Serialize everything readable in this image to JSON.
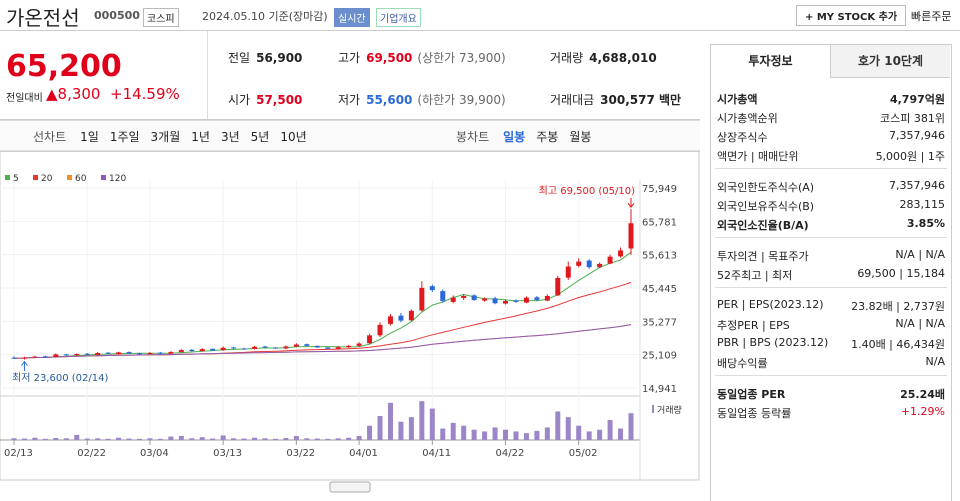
{
  "header": {
    "name": "가온전선",
    "code": "000500",
    "market": "코스피",
    "date": "2024.05.10 기준(장마감)",
    "realtime": "실시간",
    "overview": "기업개요",
    "mystock": "+ MY STOCK 추가",
    "quick_order": "빠른주문"
  },
  "quote": {
    "price": "65,200",
    "change_label": "전일대비",
    "change": "▲8,300",
    "change_pct": "+14.59%",
    "cells": [
      {
        "label": "전일",
        "value": "56,900"
      },
      {
        "label": "고가",
        "value": "69,500",
        "note": "(상한가 73,900)"
      },
      {
        "label": "거래량",
        "value": "4,688,010"
      },
      {
        "label": "시가",
        "value": "57,500"
      },
      {
        "label": "저가",
        "value": "55,600",
        "note": "(하한가 39,900)"
      },
      {
        "label": "거래대금",
        "value": "300,577 백만"
      }
    ]
  },
  "toolbar": {
    "line_label": "선차트",
    "line_periods": [
      "1일",
      "1주일",
      "3개월",
      "1년",
      "3년",
      "5년",
      "10년"
    ],
    "candle_label": "봉차트",
    "candle_periods": [
      "일봉",
      "주봉",
      "월봉"
    ]
  },
  "chart_data": {
    "type": "candlestick",
    "categories": [
      "02/13",
      null,
      null,
      null,
      null,
      null,
      null,
      "02/22",
      null,
      null,
      null,
      null,
      null,
      "03/04",
      null,
      null,
      null,
      null,
      null,
      null,
      "03/13",
      null,
      null,
      null,
      null,
      null,
      null,
      "03/22",
      null,
      null,
      null,
      null,
      null,
      "04/01",
      null,
      null,
      null,
      null,
      null,
      null,
      "04/11",
      null,
      null,
      null,
      null,
      null,
      null,
      "04/22",
      null,
      null,
      null,
      null,
      null,
      null,
      "05/02",
      null,
      null,
      null,
      null,
      null
    ],
    "open": [
      24200,
      24000,
      24200,
      24600,
      24400,
      25200,
      25000,
      25400,
      25000,
      25700,
      25300,
      25900,
      25500,
      25300,
      25700,
      25400,
      25900,
      26600,
      26200,
      26900,
      26500,
      27300,
      27000,
      26900,
      27600,
      27300,
      27000,
      27600,
      28300,
      27800,
      27300,
      26900,
      27400,
      27800,
      28600,
      31000,
      34500,
      37000,
      35600,
      38600,
      46000,
      44500,
      41200,
      42400,
      43200,
      41600,
      42300,
      40700,
      41600,
      41000,
      42600,
      41600,
      43200,
      48600,
      52200,
      53800,
      51800,
      52900,
      55100,
      57500
    ],
    "high": [
      24600,
      24500,
      24800,
      24800,
      25500,
      25400,
      25500,
      25600,
      25900,
      25900,
      26000,
      26100,
      25700,
      25900,
      25900,
      26200,
      26800,
      26800,
      27100,
      27000,
      27600,
      27500,
      27200,
      27800,
      27800,
      27400,
      27900,
      28600,
      28500,
      27900,
      27400,
      27700,
      28100,
      28900,
      31500,
      35000,
      37500,
      37800,
      38900,
      47500,
      46500,
      45000,
      43200,
      43600,
      43500,
      42600,
      42800,
      41900,
      42000,
      42900,
      43000,
      43500,
      49200,
      53500,
      54500,
      54200,
      53200,
      55600,
      57800,
      69500
    ],
    "low": [
      23800,
      23600,
      24000,
      24100,
      24200,
      24800,
      24800,
      25000,
      24900,
      25200,
      25200,
      25300,
      25100,
      25100,
      25200,
      25300,
      25800,
      26000,
      26100,
      26300,
      26300,
      26800,
      26600,
      26700,
      27100,
      26900,
      26800,
      27400,
      27600,
      27200,
      26700,
      26700,
      27200,
      27500,
      28300,
      30500,
      34000,
      35000,
      35300,
      38300,
      44200,
      41000,
      40800,
      41800,
      41500,
      41300,
      40500,
      40400,
      40900,
      40800,
      41400,
      41400,
      43000,
      47900,
      51800,
      51300,
      51500,
      52700,
      54700,
      55600
    ],
    "close": [
      24000,
      24200,
      24500,
      24300,
      25200,
      25000,
      25300,
      25100,
      25600,
      25400,
      25800,
      25500,
      25300,
      25600,
      25400,
      25900,
      26500,
      26200,
      26800,
      26400,
      27200,
      27000,
      26800,
      27500,
      27300,
      27000,
      27600,
      28200,
      27800,
      27300,
      26900,
      27400,
      27800,
      28500,
      31000,
      34200,
      36800,
      35500,
      38500,
      45500,
      44800,
      41500,
      42500,
      43000,
      41800,
      42200,
      40800,
      41500,
      41200,
      42500,
      41800,
      43000,
      48500,
      52000,
      53500,
      51800,
      52800,
      55000,
      56900,
      65200
    ],
    "volume": [
      300000,
      250000,
      400000,
      200000,
      350000,
      300000,
      900000,
      250000,
      300000,
      200000,
      400000,
      250000,
      200000,
      300000,
      200000,
      600000,
      700000,
      300000,
      500000,
      250000,
      800000,
      300000,
      250000,
      400000,
      300000,
      200000,
      350000,
      700000,
      300000,
      250000,
      200000,
      300000,
      400000,
      700000,
      2500000,
      4200000,
      6500000,
      3200000,
      4000000,
      6800000,
      5500000,
      2000000,
      3000000,
      2500000,
      1800000,
      1500000,
      2200000,
      1800000,
      1500000,
      1200000,
      1600000,
      2200000,
      5000000,
      4000000,
      2500000,
      1500000,
      1800000,
      3500000,
      2000000,
      4688010
    ],
    "volume_label": "거래량",
    "up_color": "#e0191e",
    "down_color": "#2a6ad8",
    "volume_color": "#9b86c7",
    "moving_averages": [
      {
        "name": "5",
        "period": 5,
        "color": "#4caf50"
      },
      {
        "name": "20",
        "period": 20,
        "color": "#e53935"
      },
      {
        "name": "60",
        "period": 60,
        "color": "#f0922b"
      },
      {
        "name": "120",
        "period": 120,
        "color": "#8e5cb8"
      }
    ],
    "ylim": [
      14941,
      75949
    ],
    "yticks": [
      {
        "value": 14941,
        "label": "14,941"
      },
      {
        "value": 25109,
        "label": "25,109"
      },
      {
        "value": 35277,
        "label": "35,277"
      },
      {
        "value": 45445,
        "label": "45,445"
      },
      {
        "value": 55613,
        "label": "55,613"
      },
      {
        "value": 65781,
        "label": "65,781"
      },
      {
        "value": 75949,
        "label": "75,949"
      }
    ],
    "volume_ylim": [
      0,
      7000000
    ],
    "max_annotation": "최고 69,500 (05/10)",
    "min_annotation": "최저 23,600 (02/14)"
  },
  "panel": {
    "tabs": [
      "투자정보",
      "호가 10단계"
    ],
    "groups": [
      [
        {
          "label": "시가총액",
          "value": "4,797억원",
          "bold": true
        },
        {
          "label": "시가총액순위",
          "value": "코스피 381위"
        },
        {
          "label": "상장주식수",
          "value": "7,357,946"
        },
        {
          "label": "액면가 | 매매단위",
          "value": "5,000원 | 1주"
        }
      ],
      [
        {
          "label": "외국인한도주식수(A)",
          "value": "7,357,946"
        },
        {
          "label": "외국인보유주식수(B)",
          "value": "283,115"
        },
        {
          "label": "외국인소진율(B/A)",
          "value": "3.85%",
          "bold": true
        }
      ],
      [
        {
          "label": "투자의견 | 목표주가",
          "value": "N/A | N/A"
        },
        {
          "label": "52주최고 | 최저",
          "value": "69,500 | 15,184"
        }
      ],
      [
        {
          "label": "PER | EPS(2023.12)",
          "value": "23.82배 | 2,737원"
        },
        {
          "label": "추정PER | EPS",
          "value": "N/A | N/A"
        },
        {
          "label": "PBR | BPS (2023.12)",
          "value": "1.40배 | 46,434원"
        },
        {
          "label": "배당수익률",
          "value": "N/A"
        }
      ],
      [
        {
          "label": "동일업종 PER",
          "value": "25.24배",
          "bold": true
        },
        {
          "label": "동일업종 등락률",
          "value": "+1.29%",
          "red": true
        }
      ]
    ]
  }
}
